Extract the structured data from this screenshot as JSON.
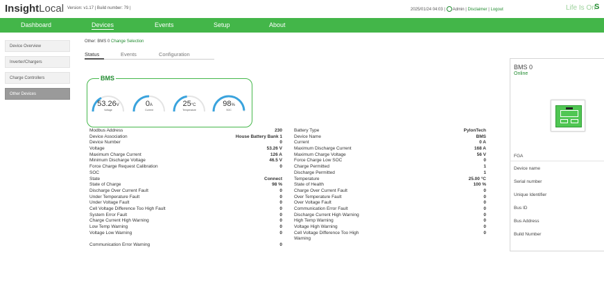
{
  "header": {
    "brand_bold": "Insight",
    "brand_rest": "Local",
    "version": "Version: v1.17 | Build number: 79 |",
    "datetime": "2025/01/24 04:03 |",
    "user": "Admin",
    "sep1": "|",
    "disclaimer": "Disclaimer",
    "sep2": "|",
    "logout": "Logout",
    "tagline": "Life Is On",
    "brand_chip": "S"
  },
  "nav": {
    "dashboard": "Dashboard",
    "devices": "Devices",
    "events": "Events",
    "setup": "Setup",
    "about": "About"
  },
  "sidebar": {
    "items": [
      {
        "label": "Device Overview"
      },
      {
        "label": "Inverter/Chargers"
      },
      {
        "label": "Charge Controllers"
      },
      {
        "label": "Other Devices"
      }
    ]
  },
  "selection": {
    "prefix": "Other: BMS 0",
    "change": "Change Selection"
  },
  "tabs": {
    "status": "Status",
    "events": "Events",
    "configuration": "Configuration"
  },
  "bms": {
    "title": "BMS",
    "gauges": [
      {
        "value": "53.26",
        "unit": "V",
        "label": "Voltage",
        "fraction": 0.35
      },
      {
        "value": "0",
        "unit": "A",
        "label": "Current",
        "fraction": 0.5
      },
      {
        "value": "25",
        "unit": "°C",
        "label": "Temperature",
        "fraction": 0.45
      },
      {
        "value": "98",
        "unit": "%",
        "label": "SOC",
        "fraction": 0.98
      }
    ]
  },
  "left_table": [
    {
      "k": "Modbus Address",
      "v": "230"
    },
    {
      "k": "Device Association",
      "v": "House Battery Bank 1"
    },
    {
      "k": "Device Number",
      "v": "0"
    },
    {
      "k": "Voltage",
      "v": "53.26 V"
    },
    {
      "k": "Maximum Charge Current",
      "v": "126 A"
    },
    {
      "k": "Minimum Discharge Voltage",
      "v": "46.5 V"
    },
    {
      "k": "Force Charge Request Calibration",
      "v": "0"
    },
    {
      "k": "SOC",
      "v": ""
    },
    {
      "k": "State",
      "v": "Connect"
    },
    {
      "k": "State of Charge",
      "v": "98 %"
    },
    {
      "k": "Discharge Over Current Fault",
      "v": "0"
    },
    {
      "k": "Under Temperature Fault",
      "v": "0"
    },
    {
      "k": "Under Voltage Fault",
      "v": "0"
    },
    {
      "k": "Cell Voltage Difference Too High Fault",
      "v": "0"
    },
    {
      "k": "System Error Fault",
      "v": "0"
    },
    {
      "k": "Charge Current High Warning",
      "v": "0"
    },
    {
      "k": "Low Temp Warning",
      "v": "0"
    },
    {
      "k": "Voltage Low Warning",
      "v": "0"
    },
    {
      "k": "",
      "v": ""
    },
    {
      "k": "Communication Error Warning",
      "v": "0"
    }
  ],
  "right_table": [
    {
      "k": "Battery Type",
      "v": "PylonTech"
    },
    {
      "k": "Device Name",
      "v": "BMS"
    },
    {
      "k": "Current",
      "v": "0 A"
    },
    {
      "k": "Maximum Discharge Current",
      "v": "168 A"
    },
    {
      "k": "Maximum Charge Voltage",
      "v": "56 V"
    },
    {
      "k": "Force Charge Low SOC",
      "v": "0"
    },
    {
      "k": "Charge Permitted",
      "v": "1"
    },
    {
      "k": "Discharge Permitted",
      "v": "1"
    },
    {
      "k": "Temperature",
      "v": "25.00 °C"
    },
    {
      "k": "State of Health",
      "v": "100 %"
    },
    {
      "k": "Charge Over Current Fault",
      "v": "0"
    },
    {
      "k": "Over Temperature Fault",
      "v": "0"
    },
    {
      "k": "Over Voltage Fault",
      "v": "0"
    },
    {
      "k": "Communication Error Fault",
      "v": "0"
    },
    {
      "k": "Discharge Current High Warning",
      "v": "0"
    },
    {
      "k": "High Temp Warning",
      "v": "0"
    },
    {
      "k": "Voltage High Warning",
      "v": "0"
    },
    {
      "k": "Cell Voltage Difference Too High",
      "v": "0"
    },
    {
      "k": "Warning",
      "v": ""
    }
  ],
  "device_panel": {
    "title": "BMS 0",
    "status": "Online",
    "model": "FGA",
    "props": [
      "Device name",
      "Serial number",
      "Unique Identifier",
      "Bus ID",
      "Bus Address",
      "Build Number"
    ]
  },
  "colors": {
    "accent": "#43b649",
    "link": "#1f8a2e",
    "gauge": "#3aa3dd"
  }
}
